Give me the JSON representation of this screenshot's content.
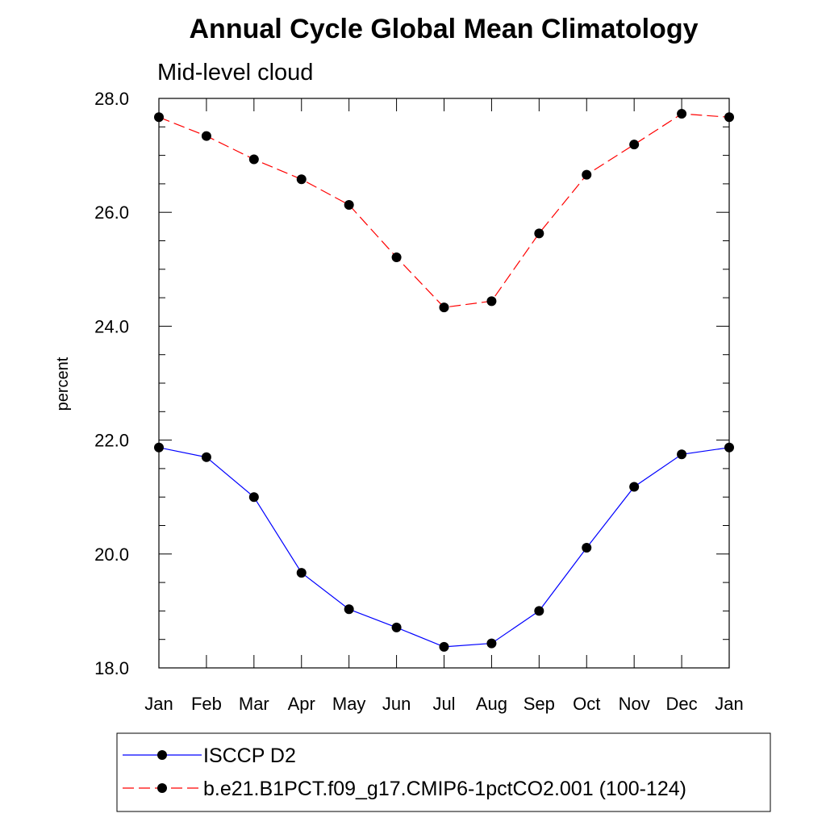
{
  "chart_data": {
    "type": "line",
    "title": "Annual Cycle Global Mean Climatology",
    "subtitle": "Mid-level cloud",
    "xlabel": "",
    "ylabel": "percent",
    "categories": [
      "Jan",
      "Feb",
      "Mar",
      "Apr",
      "May",
      "Jun",
      "Jul",
      "Aug",
      "Sep",
      "Oct",
      "Nov",
      "Dec",
      "Jan"
    ],
    "ylim": [
      18.0,
      28.0
    ],
    "yticks": [
      "18.0",
      "20.0",
      "22.0",
      "24.0",
      "26.0",
      "28.0"
    ],
    "legend_position": "bottom",
    "series": [
      {
        "name": "ISCCP D2",
        "color": "#0000ff",
        "line_style": "solid",
        "values": [
          21.87,
          21.7,
          21.0,
          19.67,
          19.03,
          18.71,
          18.37,
          18.43,
          19.0,
          20.11,
          21.18,
          21.75,
          21.87
        ]
      },
      {
        "name": "b.e21.B1PCT.f09_g17.CMIP6-1pctCO2.001 (100-124)",
        "color": "#ff0000",
        "line_style": "dashed",
        "values": [
          27.67,
          27.34,
          26.93,
          26.58,
          26.13,
          25.21,
          24.33,
          24.44,
          25.63,
          26.66,
          27.19,
          27.73,
          27.67
        ]
      }
    ]
  }
}
